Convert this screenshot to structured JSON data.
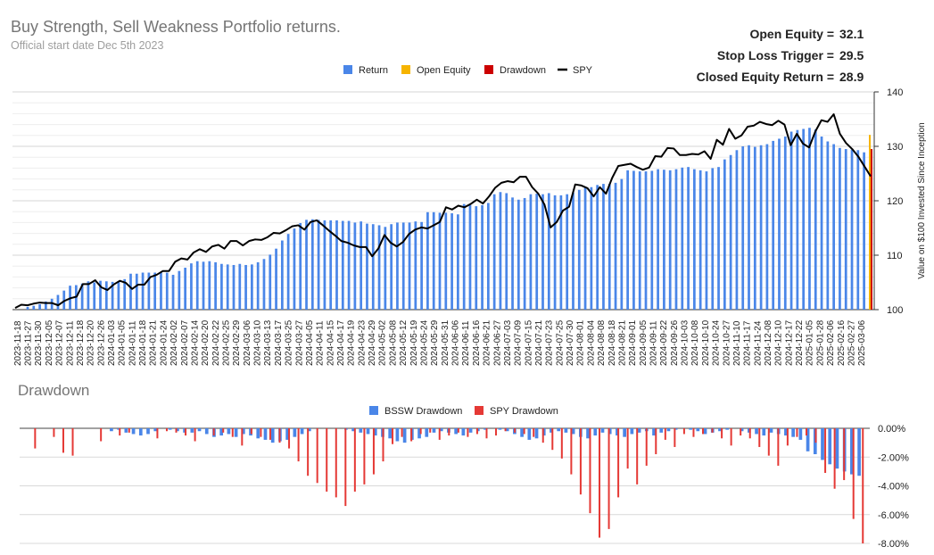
{
  "header": {
    "title": "Buy Strength, Sell Weakness Portfolio returns.",
    "subtitle": "Official start date Dec 5th 2023"
  },
  "stats": [
    {
      "label": "Open Equity =",
      "value": "32.1"
    },
    {
      "label": "Stop Loss Trigger =",
      "value": "29.5"
    },
    {
      "label": "Closed Equity Return =",
      "value": "28.9"
    }
  ],
  "colors": {
    "return": "#4a86e8",
    "open_equity": "#f6b400",
    "drawdown": "#cc0000",
    "spy": "#000000",
    "spy_drawdown": "#e53935",
    "grid": "#e0e0e0"
  },
  "chart_data": [
    {
      "type": "bar",
      "title": "",
      "legend": [
        "Return",
        "Open Equity",
        "Drawdown",
        "SPY"
      ],
      "legend_position": "top",
      "ylabel": "Value on $100 Invested Since Inception",
      "y_axis_side": "right",
      "ylim": [
        100,
        140
      ],
      "y_ticks": [
        100,
        110,
        120,
        130,
        140
      ],
      "x_tick_labels": [
        "2023-11-18",
        "2023-11-27",
        "2023-11-30",
        "2023-12-05",
        "2023-12-07",
        "2023-12-11",
        "2023-12-18",
        "2023-12-20",
        "2023-12-26",
        "2024-01-03",
        "2024-01-05",
        "2024-01-11",
        "2024-01-18",
        "2024-01-21",
        "2024-01-24",
        "2024-02-02",
        "2024-02-07",
        "2024-02-14",
        "2024-02-20",
        "2024-02-22",
        "2024-02-25",
        "2024-02-29",
        "2024-03-06",
        "2024-03-10",
        "2024-03-13",
        "2024-03-17",
        "2024-03-25",
        "2024-03-27",
        "2024-04-05",
        "2024-04-11",
        "2024-04-15",
        "2024-04-17",
        "2024-04-19",
        "2024-04-23",
        "2024-04-29",
        "2024-05-02",
        "2024-05-08",
        "2024-05-12",
        "2024-05-19",
        "2024-05-24",
        "2024-05-29",
        "2024-05-31",
        "2024-06-06",
        "2024-06-11",
        "2024-06-16",
        "2024-06-21",
        "2024-06-27",
        "2024-07-03",
        "2024-07-09",
        "2024-07-15",
        "2024-07-21",
        "2024-07-23",
        "2024-07-25",
        "2024-07-30",
        "2024-08-01",
        "2024-08-04",
        "2024-08-08",
        "2024-08-18",
        "2024-08-21",
        "2024-09-01",
        "2024-09-05",
        "2024-09-11",
        "2024-09-22",
        "2024-09-26",
        "2024-10-03",
        "2024-10-08",
        "2024-10-10",
        "2024-10-24",
        "2024-10-27",
        "2024-11-10",
        "2024-11-17",
        "2024-11-24",
        "2024-12-08",
        "2024-12-10",
        "2024-12-17",
        "2024-12-22",
        "2025-01-05",
        "2025-01-28",
        "2025-02-06",
        "2025-02-16",
        "2025-02-27",
        "2025-03-06"
      ],
      "series": [
        {
          "name": "Return",
          "values": [
            100,
            100,
            100.5,
            100.7,
            101,
            101.5,
            102,
            102.7,
            103.5,
            104.4,
            104.5,
            104.8,
            105.2,
            105,
            105.3,
            105.2,
            105.1,
            105.2,
            105.6,
            106.6,
            106.6,
            106.8,
            106.8,
            106.8,
            106.8,
            106.8,
            106.4,
            107.1,
            107.7,
            108.5,
            108.9,
            108.8,
            108.9,
            108.7,
            108.4,
            108.3,
            108.2,
            108.4,
            108.2,
            108.3,
            108.7,
            109.3,
            110.1,
            111.2,
            112.7,
            113.9,
            114.9,
            115.9,
            116.5,
            116.6,
            116.5,
            116.4,
            116.4,
            116.4,
            116.3,
            116.3,
            116,
            116.2,
            115.8,
            115.7,
            115.5,
            115.2,
            115.7,
            116,
            116,
            116,
            116.2,
            116.1,
            117.9,
            117.9,
            117.8,
            117.8,
            117.7,
            117.5,
            119.4,
            119.2,
            119,
            119.2,
            119.6,
            121.2,
            121.6,
            121.4,
            120.6,
            120.2,
            120.5,
            121.2,
            121.3,
            121.2,
            121.4,
            121,
            121,
            121.2,
            121.5,
            122,
            122.4,
            122.5,
            122.9,
            123.1,
            123.1,
            123.3,
            124,
            125.6,
            125.5,
            125.4,
            125.4,
            125.5,
            125.8,
            125.7,
            125.6,
            125.8,
            126.1,
            126.2,
            125.8,
            125.6,
            125.4,
            126,
            126.2,
            127.6,
            128.4,
            129.3,
            130,
            130.2,
            129.9,
            130.2,
            130.4,
            131,
            131.4,
            131.8,
            132.7,
            133,
            133.2,
            133.4,
            133.1,
            131.8,
            130.9,
            130.4,
            129.7,
            129.5,
            129.4,
            129.3,
            128.9
          ]
        },
        {
          "name": "Open Equity",
          "values": [
            132.1
          ]
        },
        {
          "name": "Drawdown",
          "values": [
            129.5
          ]
        },
        {
          "name": "SPY",
          "values": [
            100.3,
            100.9,
            100.8,
            101.1,
            101.3,
            101.2,
            101.2,
            100.8,
            101.6,
            102.1,
            102.4,
            104.7,
            104.7,
            105.4,
            104.1,
            103.6,
            104.6,
            105.3,
            104.9,
            103.8,
            104.6,
            104.6,
            106,
            106.4,
            107.1,
            107.1,
            108.8,
            109.4,
            109.2,
            110.5,
            111.1,
            110.6,
            111.6,
            111.9,
            111.2,
            112.6,
            112.6,
            111.8,
            112.6,
            112.9,
            112.8,
            113.3,
            114.1,
            114,
            114.6,
            115.3,
            115.5,
            114.7,
            116.1,
            116.4,
            115.5,
            114.5,
            113.6,
            112.6,
            112.3,
            111.8,
            111.5,
            111.5,
            109.8,
            111.2,
            113.7,
            112.3,
            111.6,
            112.4,
            113.9,
            114.7,
            115.1,
            114.9,
            115.5,
            116.1,
            118.8,
            118.4,
            119.1,
            118.8,
            119.4,
            120.2,
            119.5,
            120.8,
            122.4,
            123.3,
            123.6,
            123.4,
            124.4,
            124.4,
            122.5,
            121.3,
            119.3,
            115.1,
            116.1,
            118.2,
            118.9,
            123,
            122.8,
            122.3,
            120.8,
            122.5,
            121.3,
            124.2,
            126.4,
            126.6,
            126.8,
            126.2,
            125.7,
            126.1,
            128.2,
            128.1,
            129.7,
            129.6,
            128.4,
            128.4,
            128.6,
            128.5,
            129.1,
            127.7,
            131.2,
            130.3,
            133.2,
            131.4,
            132,
            133.6,
            133.8,
            134.5,
            134.1,
            133.9,
            134.7,
            134,
            130.2,
            132.3,
            130.5,
            129.8,
            132.7,
            134.8,
            134.5,
            135.9,
            132.3,
            130.6,
            129.5,
            128.1,
            126.3,
            124.5
          ]
        }
      ]
    },
    {
      "type": "bar",
      "title": "Drawdown",
      "legend": [
        "BSSW Drawdown",
        "SPY Drawdown"
      ],
      "legend_position": "top",
      "ylim": [
        -8,
        0
      ],
      "y_ticks": [
        "0.00%",
        "-2.00%",
        "-4.00%",
        "-6.00%",
        "-8.00%"
      ],
      "series": [
        {
          "name": "BSSW Drawdown",
          "values": [
            0,
            0,
            0,
            0,
            0,
            0,
            0,
            0,
            0,
            0,
            0,
            0,
            -0.2,
            -0.1,
            -0.3,
            -0.4,
            -0.5,
            -0.4,
            -0.2,
            0,
            -0.1,
            -0.2,
            -0.3,
            -0.3,
            -0.2,
            -0.4,
            -0.6,
            -0.5,
            -0.4,
            -0.6,
            -0.4,
            -0.5,
            -0.7,
            -0.8,
            -1,
            -0.9,
            -0.8,
            -0.6,
            -0.4,
            -0.2,
            0,
            0,
            0,
            0,
            -0.1,
            -0.2,
            -0.3,
            -0.4,
            -0.5,
            -0.6,
            -0.7,
            -0.9,
            -1,
            -0.8,
            -0.7,
            -0.6,
            -0.3,
            -0.2,
            -0.3,
            -0.4,
            -0.5,
            -0.3,
            -0.2,
            -0.1,
            0,
            -0.1,
            -0.2,
            -0.4,
            -0.6,
            -0.8,
            -0.7,
            -0.5,
            -0.3,
            -0.2,
            -0.3,
            -0.4,
            -0.6,
            -0.7,
            -0.5,
            -0.3,
            -0.4,
            -0.5,
            -0.6,
            -0.4,
            -0.3,
            -0.2,
            -0.5,
            -0.3,
            -0.2,
            -0.1,
            0,
            -0.1,
            -0.2,
            -0.4,
            -0.3,
            -0.2,
            -0.1,
            0,
            -0.2,
            -0.3,
            -0.4,
            -0.5,
            -0.3,
            -0.4,
            -0.5,
            -0.6,
            -0.8,
            -1.6,
            -1.8,
            -2.2,
            -2.5,
            -2.8,
            -3,
            -3.2,
            -3.3
          ]
        },
        {
          "name": "SPY Drawdown",
          "values": [
            0,
            -1.4,
            0,
            -0.6,
            -1.7,
            -1.9,
            0,
            0,
            -0.9,
            0,
            -0.5,
            -0.3,
            0,
            0,
            -0.7,
            -0.2,
            -0.3,
            -0.5,
            -0.9,
            0,
            -0.5,
            -0.3,
            -0.6,
            -1.2,
            -0.4,
            -0.6,
            -0.8,
            -1,
            -1.4,
            -2.3,
            -3.3,
            -3.8,
            -4.4,
            -4.8,
            -5.4,
            -4.4,
            -3.9,
            -3.2,
            -2.3,
            -1.1,
            -0.6,
            -0.9,
            -0.4,
            -0.3,
            -0.8,
            -0.5,
            -0.3,
            -0.6,
            -0.4,
            -0.7,
            -0.5,
            -0.2,
            -0.3,
            -0.4,
            -0.6,
            -1,
            -1.5,
            -2.1,
            -3.2,
            -4.6,
            -5.9,
            -7.6,
            -7,
            -4.8,
            -2.8,
            -3.9,
            -2.6,
            -1.8,
            -0.8,
            -1.3,
            -0.4,
            -0.6,
            -0.4,
            -0.3,
            -0.7,
            -1.2,
            -0.5,
            -0.7,
            -1.3,
            -1.9,
            -2.6,
            -1.2,
            -0.6,
            -0.5,
            -1,
            -3.1,
            -4.2,
            -3.6,
            -6.3,
            -8
          ]
        }
      ]
    }
  ]
}
